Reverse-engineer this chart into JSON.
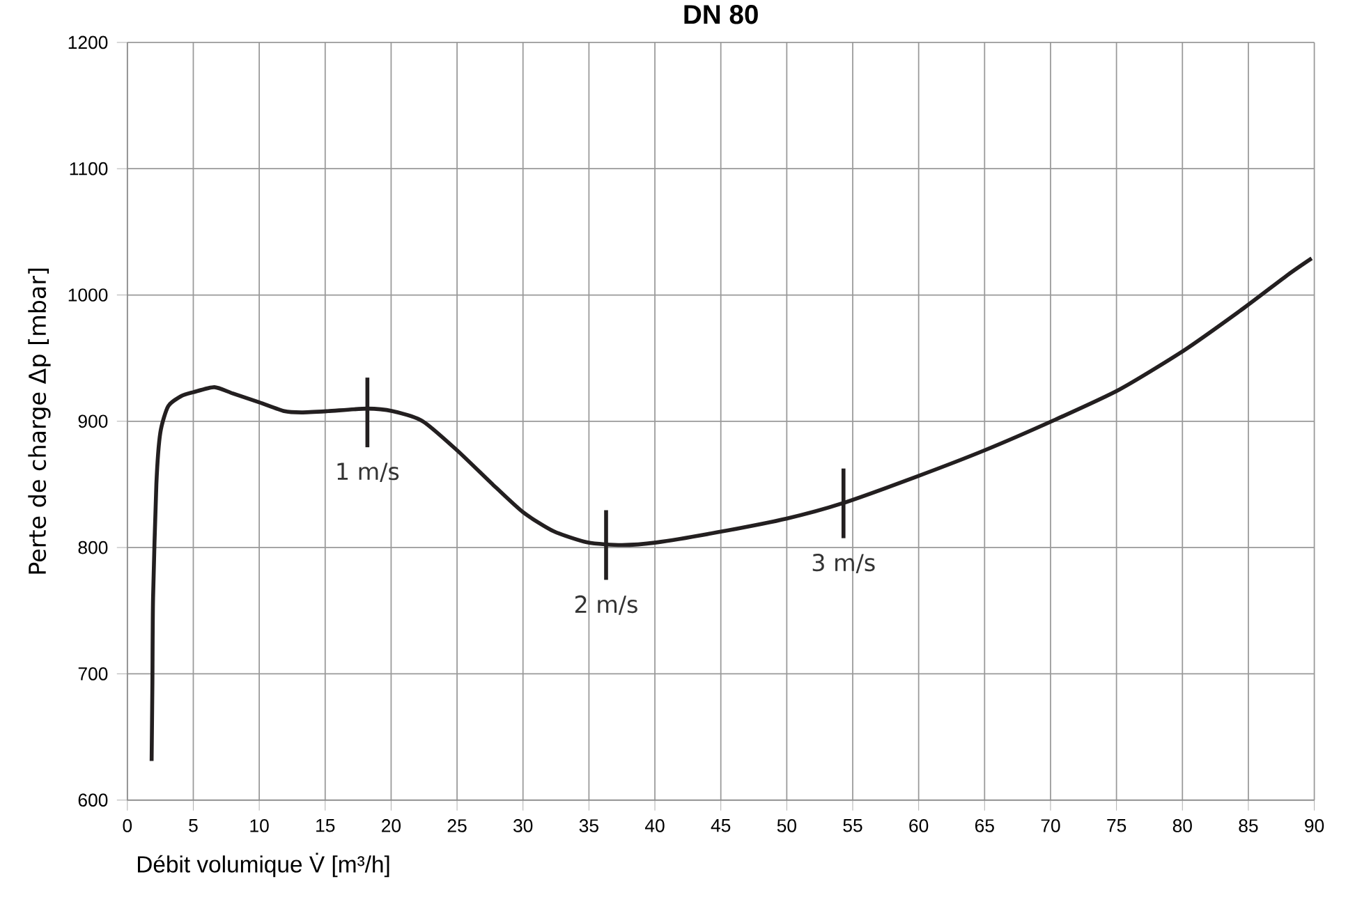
{
  "chart_data": {
    "type": "line",
    "title": "DN 80",
    "xlabel": "Débit volumique V̇ [m³/h]",
    "ylabel": "Perte de charge Δp [mbar]",
    "xlim": [
      0,
      90
    ],
    "ylim": [
      600,
      1200
    ],
    "xticks": [
      0,
      5,
      10,
      15,
      20,
      25,
      30,
      35,
      40,
      45,
      50,
      55,
      60,
      65,
      70,
      75,
      80,
      85,
      90
    ],
    "yticks": [
      600,
      700,
      800,
      900,
      1000,
      1100,
      1200
    ],
    "grid": true,
    "marker": "none",
    "line_style": "solid",
    "series": [
      {
        "color": "#231f20",
        "x": [
          1.84,
          1.9,
          1.95,
          2.2,
          2.5,
          3.1,
          4.1,
          5,
          6.6,
          8,
          10,
          11.9,
          13.2,
          15.2,
          18.2,
          20.1,
          22.4,
          25,
          27.7,
          30,
          32.3,
          34.9,
          37.5,
          40.1,
          44.7,
          50,
          54.2,
          59.8,
          65,
          70.3,
          75.2,
          80.1,
          84.7,
          88,
          89.8
        ],
        "values": [
          631,
          693,
          760,
          850,
          891,
          912,
          920,
          923,
          927,
          922,
          915,
          908,
          907,
          908,
          910,
          908,
          900,
          877,
          850,
          828,
          813,
          804,
          802,
          804,
          812,
          823,
          835,
          856,
          877,
          901,
          925,
          956,
          990,
          1016,
          1029
        ]
      }
    ],
    "annotations": [
      {
        "text": "1 m/s",
        "x": 18.2,
        "y": 907
      },
      {
        "text": "2 m/s",
        "x": 36.3,
        "y": 802
      },
      {
        "text": "3 m/s",
        "x": 54.3,
        "y": 835
      }
    ]
  }
}
